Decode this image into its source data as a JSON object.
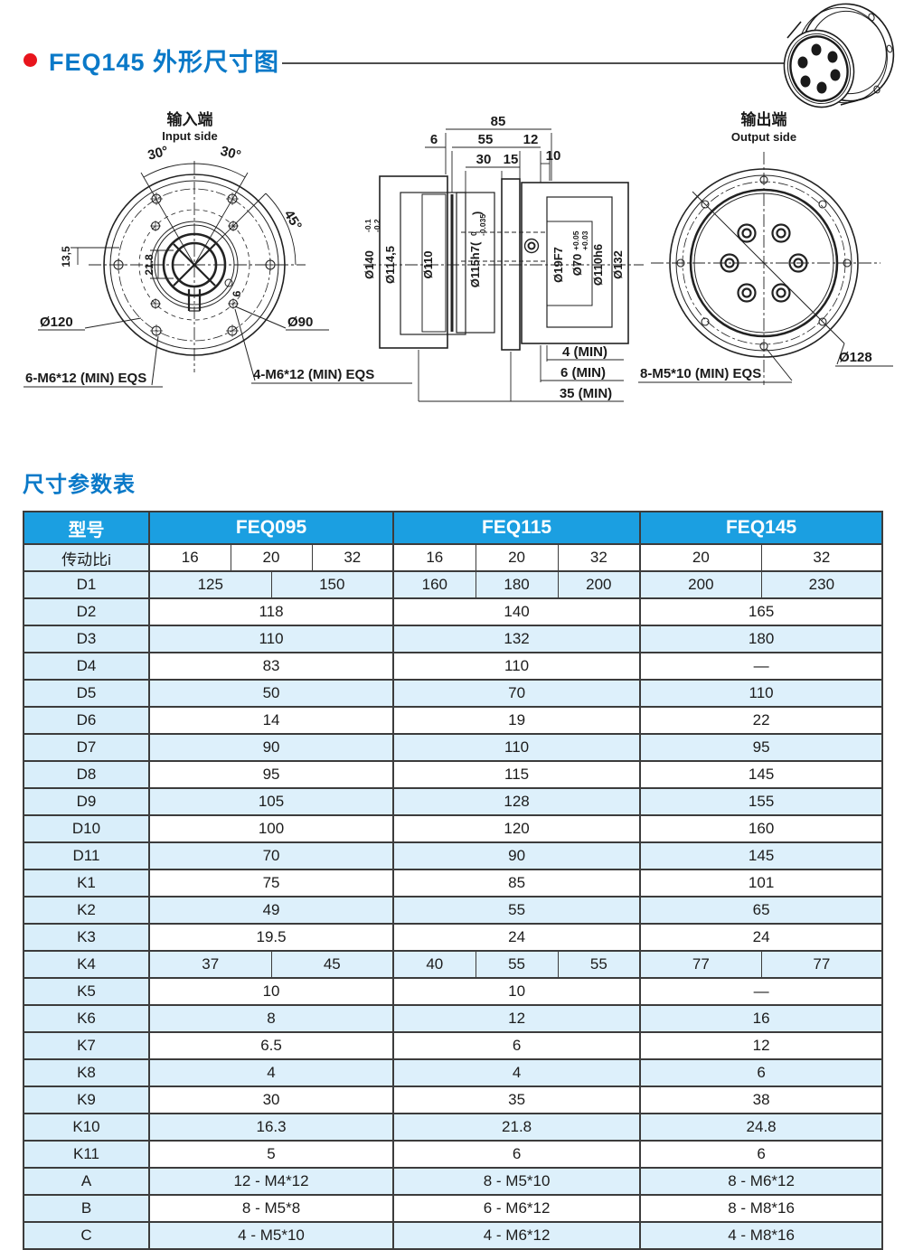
{
  "page": {
    "main_title": "FEQ145 外形尺寸图",
    "table_title": "尺寸参数表"
  },
  "colors": {
    "accent_blue": "#0a79c8",
    "table_header_blue": "#1b9fe1",
    "row_tint_blue": "#d9eefa",
    "bullet_red": "#e8151d"
  },
  "drawings": {
    "input": {
      "title_cn": "输入端",
      "title_en": "Input side",
      "angle_left": "30°",
      "angle_right": "30°",
      "angle_45": "45°",
      "dim_13_5": "13,5",
      "dim_21_8": "21.8",
      "dim_6": "6",
      "dia_120": "Ø120",
      "dia_90": "Ø90",
      "bolts_outer": "6-M6*12 (MIN) EQS",
      "bolts_inner": "4-M6*12 (MIN) EQS"
    },
    "section": {
      "dim_85": "85",
      "dim_6": "6",
      "dim_55": "55",
      "dim_12": "12",
      "dim_10": "10",
      "dim_30": "30",
      "dim_15": "15",
      "dia_140": "Ø140",
      "dia_140_tol_upper": "-0.1",
      "dia_140_tol_lower": "-0.2",
      "dia_114_5": "Ø114,5",
      "dia_110": "Ø110",
      "dia_115": "Ø115h7(",
      "dia_115_tol_upper": "0",
      "dia_115_tol_lower": "-0.035",
      "dia_115_close": ")",
      "dia_19": "Ø19F7",
      "dia_70": "Ø70",
      "dia_70_tol_upper": "+0.05",
      "dia_70_tol_lower": "+0.03",
      "dia_110h6": "Ø110h6",
      "dia_132": "Ø132",
      "min_4": "4 (MIN)",
      "min_6": "6 (MIN)",
      "min_35": "35 (MIN)"
    },
    "output": {
      "title_cn": "输出端",
      "title_en": "Output side",
      "dia_128": "Ø128",
      "bolts": "8-M5*10 (MIN) EQS"
    }
  },
  "table": {
    "model_header": "型号",
    "groups": [
      {
        "label": "FEQ095",
        "span": 6
      },
      {
        "label": "FEQ115",
        "span": 3
      },
      {
        "label": "FEQ145",
        "span": 2
      }
    ],
    "rows": [
      {
        "label": "传动比i",
        "cells": [
          [
            "16",
            2
          ],
          [
            "20",
            2
          ],
          [
            "32",
            2
          ],
          [
            "16",
            1
          ],
          [
            "20",
            1
          ],
          [
            "32",
            1
          ],
          [
            "20",
            1
          ],
          [
            "32",
            1
          ]
        ]
      },
      {
        "label": "D1",
        "cells": [
          [
            "125",
            3
          ],
          [
            "150",
            3
          ],
          [
            "160",
            1
          ],
          [
            "180",
            1
          ],
          [
            "200",
            1
          ],
          [
            "200",
            1
          ],
          [
            "230",
            1
          ]
        ]
      },
      {
        "label": "D2",
        "cells": [
          [
            "118",
            6
          ],
          [
            "140",
            3
          ],
          [
            "165",
            2
          ]
        ]
      },
      {
        "label": "D3",
        "cells": [
          [
            "110",
            6
          ],
          [
            "132",
            3
          ],
          [
            "180",
            2
          ]
        ]
      },
      {
        "label": "D4",
        "cells": [
          [
            "83",
            6
          ],
          [
            "110",
            3
          ],
          [
            "—",
            2
          ]
        ]
      },
      {
        "label": "D5",
        "cells": [
          [
            "50",
            6
          ],
          [
            "70",
            3
          ],
          [
            "110",
            2
          ]
        ]
      },
      {
        "label": "D6",
        "cells": [
          [
            "14",
            6
          ],
          [
            "19",
            3
          ],
          [
            "22",
            2
          ]
        ]
      },
      {
        "label": "D7",
        "cells": [
          [
            "90",
            6
          ],
          [
            "110",
            3
          ],
          [
            "95",
            2
          ]
        ]
      },
      {
        "label": "D8",
        "cells": [
          [
            "95",
            6
          ],
          [
            "115",
            3
          ],
          [
            "145",
            2
          ]
        ]
      },
      {
        "label": "D9",
        "cells": [
          [
            "105",
            6
          ],
          [
            "128",
            3
          ],
          [
            "155",
            2
          ]
        ]
      },
      {
        "label": "D10",
        "cells": [
          [
            "100",
            6
          ],
          [
            "120",
            3
          ],
          [
            "160",
            2
          ]
        ]
      },
      {
        "label": "D11",
        "cells": [
          [
            "70",
            6
          ],
          [
            "90",
            3
          ],
          [
            "145",
            2
          ]
        ]
      },
      {
        "label": "K1",
        "cells": [
          [
            "75",
            6
          ],
          [
            "85",
            3
          ],
          [
            "101",
            2
          ]
        ]
      },
      {
        "label": "K2",
        "cells": [
          [
            "49",
            6
          ],
          [
            "55",
            3
          ],
          [
            "65",
            2
          ]
        ]
      },
      {
        "label": "K3",
        "cells": [
          [
            "19.5",
            6
          ],
          [
            "24",
            3
          ],
          [
            "24",
            2
          ]
        ]
      },
      {
        "label": "K4",
        "cells": [
          [
            "37",
            3
          ],
          [
            "45",
            3
          ],
          [
            "40",
            1
          ],
          [
            "55",
            1
          ],
          [
            "55",
            1
          ],
          [
            "77",
            1
          ],
          [
            "77",
            1
          ]
        ]
      },
      {
        "label": "K5",
        "cells": [
          [
            "10",
            6
          ],
          [
            "10",
            3
          ],
          [
            "—",
            2
          ]
        ]
      },
      {
        "label": "K6",
        "cells": [
          [
            "8",
            6
          ],
          [
            "12",
            3
          ],
          [
            "16",
            2
          ]
        ]
      },
      {
        "label": "K7",
        "cells": [
          [
            "6.5",
            6
          ],
          [
            "6",
            3
          ],
          [
            "12",
            2
          ]
        ]
      },
      {
        "label": "K8",
        "cells": [
          [
            "4",
            6
          ],
          [
            "4",
            3
          ],
          [
            "6",
            2
          ]
        ]
      },
      {
        "label": "K9",
        "cells": [
          [
            "30",
            6
          ],
          [
            "35",
            3
          ],
          [
            "38",
            2
          ]
        ]
      },
      {
        "label": "K10",
        "cells": [
          [
            "16.3",
            6
          ],
          [
            "21.8",
            3
          ],
          [
            "24.8",
            2
          ]
        ]
      },
      {
        "label": "K11",
        "cells": [
          [
            "5",
            6
          ],
          [
            "6",
            3
          ],
          [
            "6",
            2
          ]
        ]
      },
      {
        "label": "A",
        "cells": [
          [
            "12 - M4*12",
            6
          ],
          [
            "8 - M5*10",
            3
          ],
          [
            "8 - M6*12",
            2
          ]
        ]
      },
      {
        "label": "B",
        "cells": [
          [
            "8 - M5*8",
            6
          ],
          [
            "6 - M6*12",
            3
          ],
          [
            "8 - M8*16",
            2
          ]
        ]
      },
      {
        "label": "C",
        "cells": [
          [
            "4 - M5*10",
            6
          ],
          [
            "4 - M6*12",
            3
          ],
          [
            "4 - M8*16",
            2
          ]
        ]
      }
    ]
  }
}
